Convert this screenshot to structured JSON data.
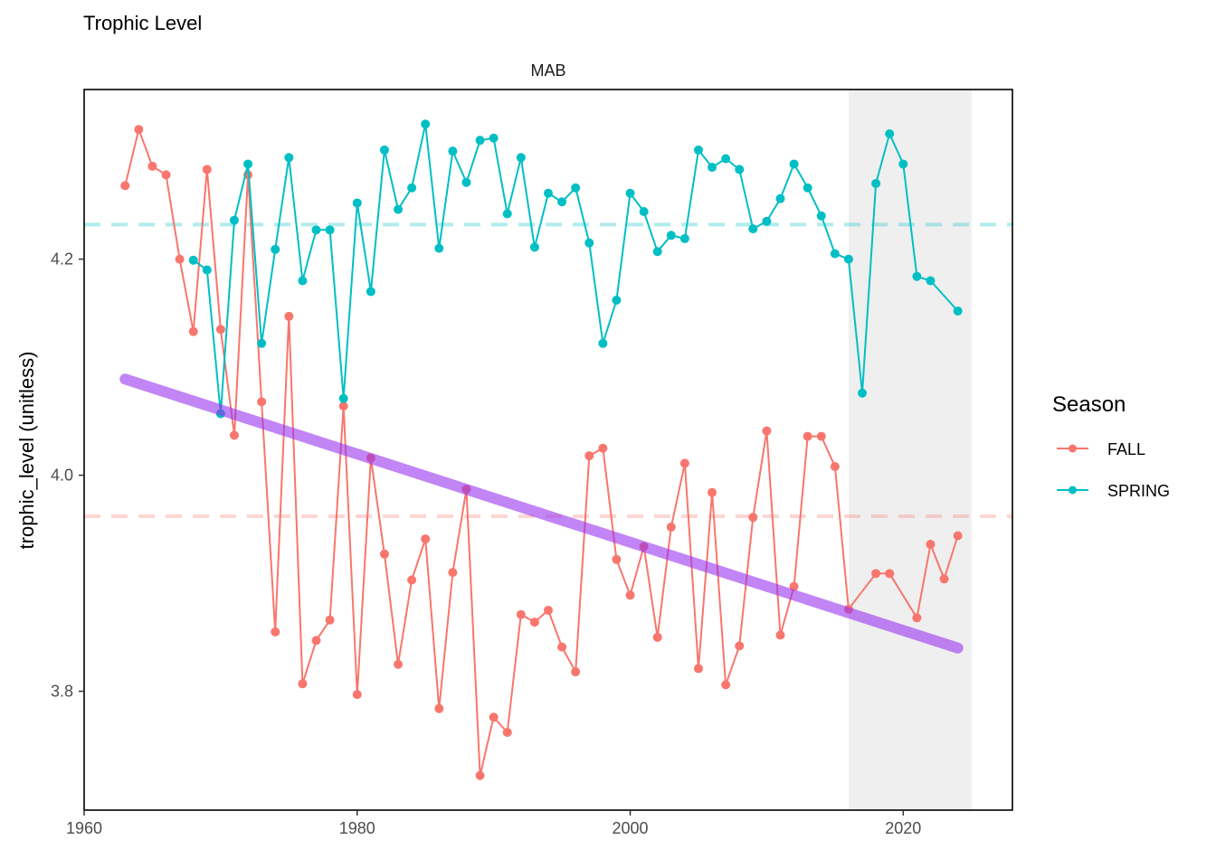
{
  "chart_data": {
    "type": "line",
    "title": "Trophic Level",
    "panel": "MAB",
    "xlabel": "",
    "ylabel": "trophic_level (unitless)",
    "xlim": [
      1960,
      2028
    ],
    "ylim": [
      3.69,
      4.357
    ],
    "x_ticks": [
      1960,
      1980,
      2000,
      2020
    ],
    "y_ticks": [
      3.8,
      4.0,
      4.2
    ],
    "x_tick_labels": [
      "1960",
      "1980",
      "2000",
      "2020"
    ],
    "y_tick_labels": [
      "3.8",
      "4.0",
      "4.2"
    ],
    "shaded_region": {
      "x_start": 2016,
      "x_end": 2025,
      "color": "#efefef"
    },
    "grid": false,
    "legend": {
      "title": "Season",
      "position": "right"
    },
    "series": [
      {
        "name": "FALL",
        "color": "#F8766D",
        "x": [
          1963,
          1964,
          1965,
          1966,
          1967,
          1968,
          1969,
          1970,
          1971,
          1972,
          1973,
          1974,
          1975,
          1976,
          1977,
          1978,
          1979,
          1980,
          1981,
          1982,
          1983,
          1984,
          1985,
          1986,
          1987,
          1988,
          1989,
          1990,
          1991,
          1992,
          1993,
          1994,
          1995,
          1996,
          1997,
          1998,
          1999,
          2000,
          2001,
          2002,
          2003,
          2004,
          2005,
          2006,
          2007,
          2008,
          2009,
          2010,
          2011,
          2012,
          2013,
          2014,
          2015,
          2016,
          2018,
          2019,
          2021,
          2022,
          2023,
          2024
        ],
        "values": [
          4.268,
          4.32,
          4.286,
          4.278,
          4.2,
          4.133,
          4.283,
          4.135,
          4.037,
          4.278,
          4.068,
          3.855,
          4.147,
          3.807,
          3.847,
          3.866,
          4.064,
          3.797,
          4.016,
          3.927,
          3.825,
          3.903,
          3.941,
          3.784,
          3.91,
          3.987,
          3.722,
          3.776,
          3.762,
          3.871,
          3.864,
          3.875,
          3.841,
          3.818,
          4.018,
          4.025,
          3.922,
          3.889,
          3.934,
          3.85,
          3.952,
          4.011,
          3.821,
          3.984,
          3.806,
          3.842,
          3.961,
          4.041,
          3.852,
          3.897,
          4.036,
          4.036,
          4.008,
          3.876,
          3.909,
          3.909,
          3.868,
          3.936,
          3.904,
          3.944
        ]
      },
      {
        "name": "SPRING",
        "color": "#00BFC4",
        "x": [
          1968,
          1969,
          1970,
          1971,
          1972,
          1973,
          1974,
          1975,
          1976,
          1977,
          1978,
          1979,
          1980,
          1981,
          1982,
          1983,
          1984,
          1985,
          1986,
          1987,
          1988,
          1989,
          1990,
          1991,
          1992,
          1993,
          1994,
          1995,
          1996,
          1997,
          1998,
          1999,
          2000,
          2001,
          2002,
          2003,
          2004,
          2005,
          2006,
          2007,
          2008,
          2009,
          2010,
          2011,
          2012,
          2013,
          2014,
          2015,
          2016,
          2017,
          2018,
          2019,
          2020,
          2021,
          2022,
          2024
        ],
        "values": [
          4.199,
          4.19,
          4.057,
          4.236,
          4.288,
          4.122,
          4.209,
          4.294,
          4.18,
          4.227,
          4.227,
          4.071,
          4.252,
          4.17,
          4.301,
          4.246,
          4.266,
          4.325,
          4.21,
          4.3,
          4.271,
          4.31,
          4.312,
          4.242,
          4.294,
          4.211,
          4.261,
          4.253,
          4.266,
          4.215,
          4.122,
          4.162,
          4.261,
          4.244,
          4.207,
          4.222,
          4.219,
          4.301,
          4.285,
          4.293,
          4.283,
          4.228,
          4.235,
          4.256,
          4.288,
          4.266,
          4.24,
          4.205,
          4.2,
          4.076,
          4.27,
          4.316,
          4.288,
          4.184,
          4.18,
          4.152
        ]
      }
    ],
    "mean_lines": [
      {
        "series": "SPRING",
        "y": 4.232,
        "color": "#00BFC4"
      },
      {
        "series": "FALL",
        "y": 3.962,
        "color": "#F8766D"
      }
    ],
    "trend_line": {
      "x": [
        1963,
        2024
      ],
      "y": [
        4.089,
        3.84
      ],
      "color": "#9933EE"
    }
  }
}
